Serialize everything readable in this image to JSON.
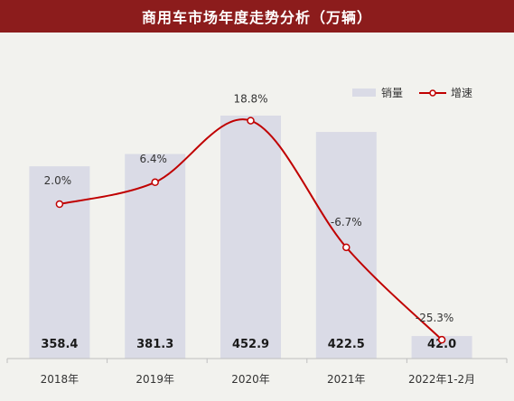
{
  "header": {
    "title": "商用车市场年度走势分析（万辆）"
  },
  "legend": {
    "bar_label": "销量",
    "line_label": "增速"
  },
  "colors": {
    "title_bg": "#8c1c1c",
    "bar": "#dadbe6",
    "line": "#c00000",
    "background": "#f2f2ee"
  },
  "chart_data": {
    "type": "bar",
    "categories": [
      "2018年",
      "2019年",
      "2020年",
      "2021年",
      "2022年1-2月"
    ],
    "series": [
      {
        "name": "销量",
        "type": "bar",
        "values": [
          358.4,
          381.3,
          452.9,
          422.5,
          42.0
        ],
        "labels": [
          "358.4",
          "381.3",
          "452.9",
          "422.5",
          "42.0"
        ]
      },
      {
        "name": "增速",
        "type": "line",
        "values": [
          2.0,
          6.4,
          18.8,
          -6.7,
          -25.3
        ],
        "labels": [
          "2.0%",
          "6.4%",
          "18.8%",
          "-6.7%",
          "-25.3%"
        ]
      }
    ],
    "title": "商用车市场年度走势分析（万辆）",
    "legend_position": "top-right",
    "grid": false
  }
}
